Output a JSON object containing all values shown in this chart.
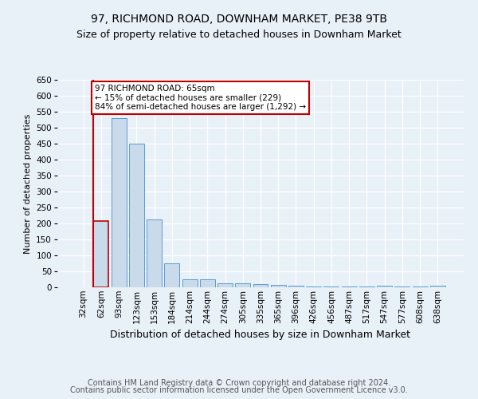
{
  "title": "97, RICHMOND ROAD, DOWNHAM MARKET, PE38 9TB",
  "subtitle": "Size of property relative to detached houses in Downham Market",
  "xlabel": "Distribution of detached houses by size in Downham Market",
  "ylabel": "Number of detached properties",
  "categories": [
    "32sqm",
    "62sqm",
    "93sqm",
    "123sqm",
    "153sqm",
    "184sqm",
    "214sqm",
    "244sqm",
    "274sqm",
    "305sqm",
    "335sqm",
    "365sqm",
    "396sqm",
    "426sqm",
    "456sqm",
    "487sqm",
    "517sqm",
    "547sqm",
    "577sqm",
    "608sqm",
    "638sqm"
  ],
  "values": [
    0,
    208,
    530,
    450,
    213,
    75,
    25,
    25,
    13,
    13,
    10,
    8,
    5,
    2,
    2,
    2,
    2,
    5,
    2,
    2,
    5
  ],
  "bar_color": "#c9daea",
  "bar_edge_color": "#5b9bd5",
  "highlight_bar_index": 1,
  "vline_color": "#c00000",
  "annotation_text": "97 RICHMOND ROAD: 65sqm\n← 15% of detached houses are smaller (229)\n84% of semi-detached houses are larger (1,292) →",
  "annotation_box_color": "white",
  "annotation_box_edge_color": "#c00000",
  "ylim": [
    0,
    650
  ],
  "yticks": [
    0,
    50,
    100,
    150,
    200,
    250,
    300,
    350,
    400,
    450,
    500,
    550,
    600,
    650
  ],
  "footer_line1": "Contains HM Land Registry data © Crown copyright and database right 2024.",
  "footer_line2": "Contains public sector information licensed under the Open Government Licence v3.0.",
  "background_color": "#e8f0f8",
  "grid_color": "white",
  "title_fontsize": 10,
  "subtitle_fontsize": 9,
  "tick_fontsize": 7.5,
  "ylabel_fontsize": 8,
  "xlabel_fontsize": 9,
  "annotation_fontsize": 7.5,
  "footer_fontsize": 7
}
